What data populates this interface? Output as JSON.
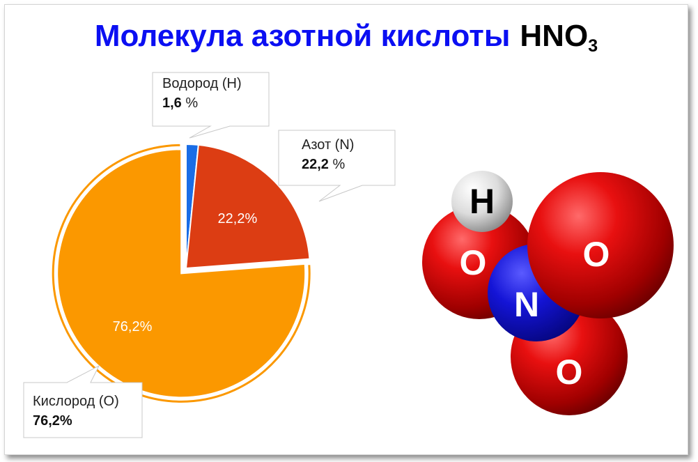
{
  "title": {
    "main": "Молекула азотной кислоты",
    "formula": "HNO",
    "formula_sub": "3"
  },
  "chart_data": {
    "type": "pie",
    "slices": [
      {
        "label": "Водород (H)",
        "value": 1.6,
        "color": "#1a6de6",
        "callout_value": "1,6",
        "callout_unit": " %",
        "inner_label": ""
      },
      {
        "label": "Азот (N)",
        "value": 22.2,
        "color": "#dc3d13",
        "callout_value": "22,2",
        "callout_unit": " %",
        "inner_label": "22,2%"
      },
      {
        "label": "Кислород (O)",
        "value": 76.2,
        "color": "#fb9800",
        "callout_value": "76,2%",
        "callout_unit": "",
        "inner_label": "76,2%"
      }
    ]
  },
  "molecule": {
    "atoms": [
      {
        "symbol": "H",
        "color": "#f0f0f0",
        "text_color": "#000000"
      },
      {
        "symbol": "O",
        "color": "#e01010",
        "text_color": "#ffffff"
      },
      {
        "symbol": "O",
        "color": "#e01010",
        "text_color": "#ffffff"
      },
      {
        "symbol": "N",
        "color": "#1010d0",
        "text_color": "#ffffff"
      },
      {
        "symbol": "O",
        "color": "#e01010",
        "text_color": "#ffffff"
      }
    ]
  }
}
